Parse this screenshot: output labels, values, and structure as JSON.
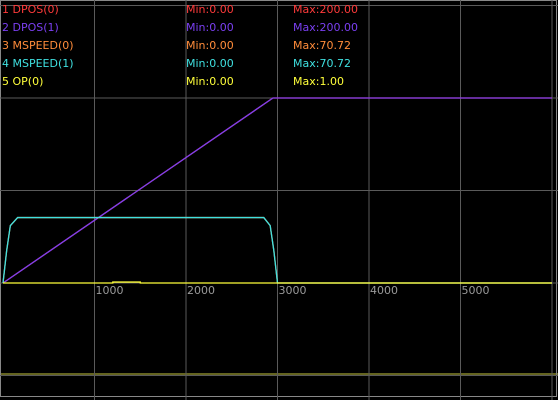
{
  "chart_data": {
    "type": "line",
    "xlim": [
      0,
      6000
    ],
    "xticks": [
      1000,
      2000,
      3000,
      4000,
      5000,
      6000
    ],
    "ylim": [
      -120,
      300
    ],
    "yticks": [
      -100,
      0,
      100,
      200,
      300
    ],
    "grid": true,
    "series": [
      {
        "name": "1 DPOS(0)",
        "color": "#ff3a3a",
        "min_label": "Min:0.00",
        "max_label": "Max:200.00",
        "x": [
          0,
          2950,
          6000
        ],
        "values": [
          0,
          200,
          200
        ]
      },
      {
        "name": "2 DPOS(1)",
        "color": "#7a3ff0",
        "min_label": "Min:0.00",
        "max_label": "Max:200.00",
        "x": [
          0,
          2950,
          6000
        ],
        "values": [
          0,
          200,
          200
        ]
      },
      {
        "name": "3 MSPEED(0)",
        "color": "#ff8c3a",
        "min_label": "Min:0.00",
        "max_label": "Max:70.72",
        "x": [
          0,
          40,
          80,
          160,
          2850,
          2920,
          2960,
          3000,
          6000
        ],
        "values": [
          0,
          35,
          62,
          70.72,
          70.72,
          62,
          35,
          0,
          0
        ]
      },
      {
        "name": "4 MSPEED(1)",
        "color": "#3fe0e0",
        "min_label": "Min:0.00",
        "max_label": "Max:70.72",
        "x": [
          0,
          40,
          80,
          160,
          2850,
          2920,
          2960,
          3000,
          6000
        ],
        "values": [
          0,
          35,
          62,
          70.72,
          70.72,
          62,
          35,
          0,
          0
        ]
      },
      {
        "name": "5 OP(0)",
        "color": "#ffff3a",
        "min_label": "Min:0.00",
        "max_label": "Max:1.00",
        "x": [
          0,
          1200,
          1200,
          1500,
          1500,
          6000
        ],
        "values": [
          0,
          0,
          1,
          1,
          0,
          0
        ]
      }
    ]
  }
}
